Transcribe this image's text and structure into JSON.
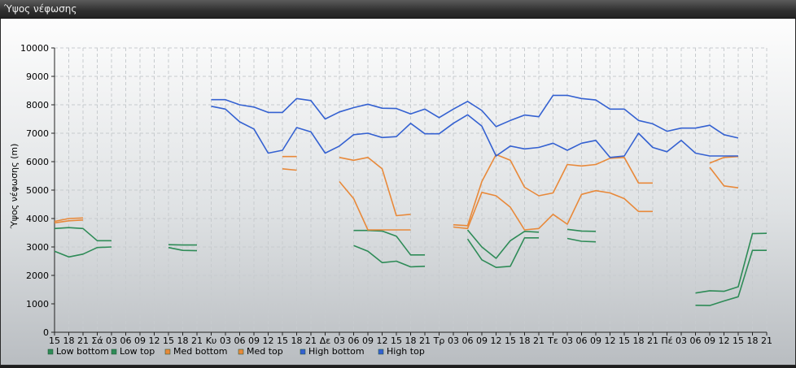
{
  "window": {
    "title": "Ύψος νέφωσης"
  },
  "chart_data": {
    "type": "line",
    "title": "",
    "xlabel": "",
    "ylabel": "Ύψος νέφωσης (m)",
    "ylim": [
      0,
      10000
    ],
    "yticks": [
      0,
      1000,
      2000,
      3000,
      4000,
      5000,
      6000,
      7000,
      8000,
      9000,
      10000
    ],
    "grid": true,
    "legend_position": "bottom-left",
    "categories": [
      "15",
      "18",
      "21",
      "Σά",
      "03",
      "06",
      "09",
      "12",
      "15",
      "18",
      "21",
      "Κυ",
      "03",
      "06",
      "09",
      "12",
      "15",
      "18",
      "21",
      "Δε",
      "03",
      "06",
      "09",
      "12",
      "15",
      "18",
      "21",
      "Τρ",
      "03",
      "06",
      "09",
      "12",
      "15",
      "18",
      "21",
      "Τε",
      "03",
      "06",
      "09",
      "12",
      "15",
      "18",
      "21",
      "Πέ",
      "03",
      "06",
      "09",
      "12",
      "15",
      "18",
      "21"
    ],
    "series": [
      {
        "name": "Low bottom",
        "color": "#2e8b57",
        "values": [
          2850,
          2650,
          2750,
          2980,
          3000,
          null,
          null,
          null,
          2980,
          2880,
          2870,
          null,
          null,
          null,
          null,
          null,
          null,
          null,
          null,
          null,
          null,
          3050,
          2850,
          2450,
          2500,
          2300,
          2320,
          null,
          null,
          3280,
          2550,
          2280,
          2320,
          3320,
          3320,
          null,
          3300,
          3200,
          3180,
          null,
          null,
          null,
          null,
          null,
          null,
          950,
          940,
          1100,
          1250,
          2880,
          2880
        ]
      },
      {
        "name": "Low top",
        "color": "#2e8b57",
        "values": [
          3650,
          3680,
          3650,
          3220,
          3220,
          null,
          null,
          null,
          3080,
          3070,
          3070,
          null,
          null,
          null,
          null,
          null,
          null,
          null,
          null,
          null,
          null,
          3580,
          3580,
          3560,
          3380,
          2720,
          2720,
          null,
          null,
          3600,
          3000,
          2600,
          3220,
          3550,
          3520,
          null,
          3620,
          3560,
          3550,
          null,
          null,
          null,
          null,
          null,
          null,
          1380,
          1460,
          1440,
          1600,
          3470,
          3480
        ]
      },
      {
        "name": "Med bottom",
        "color": "#e8893a",
        "values": [
          3850,
          3920,
          3950,
          null,
          null,
          null,
          null,
          null,
          null,
          null,
          null,
          null,
          null,
          null,
          null,
          null,
          5750,
          5700,
          null,
          null,
          5300,
          4700,
          3600,
          3600,
          3600,
          3600,
          null,
          null,
          3700,
          3650,
          4920,
          4800,
          4400,
          3600,
          3650,
          4150,
          3800,
          4850,
          4980,
          4900,
          4700,
          4250,
          4250,
          null,
          null,
          null,
          5800,
          5150,
          5080,
          null,
          null
        ]
      },
      {
        "name": "Med top",
        "color": "#e8893a",
        "values": [
          3900,
          4000,
          4020,
          null,
          null,
          null,
          null,
          null,
          null,
          null,
          null,
          null,
          null,
          null,
          null,
          null,
          6180,
          6180,
          null,
          null,
          6150,
          6050,
          6150,
          5750,
          4100,
          4150,
          null,
          null,
          3780,
          3750,
          5300,
          6250,
          6050,
          5100,
          4800,
          4900,
          5900,
          5850,
          5900,
          6120,
          6150,
          5250,
          5250,
          null,
          null,
          null,
          5950,
          6150,
          6180,
          null,
          null
        ]
      },
      {
        "name": "High bottom",
        "color": "#3461d1",
        "values": [
          null,
          null,
          null,
          null,
          null,
          null,
          null,
          null,
          null,
          null,
          null,
          7950,
          7850,
          7400,
          7150,
          6300,
          6400,
          7200,
          7050,
          6300,
          6550,
          6950,
          7000,
          6850,
          6880,
          7350,
          6980,
          6980,
          7350,
          7650,
          7250,
          6200,
          6550,
          6450,
          6500,
          6650,
          6400,
          6650,
          6750,
          6150,
          6200,
          7000,
          6500,
          6350,
          6750,
          6300,
          6200,
          6200,
          6200,
          null,
          null
        ]
      },
      {
        "name": "High top",
        "color": "#3461d1",
        "values": [
          null,
          null,
          null,
          null,
          null,
          null,
          null,
          null,
          null,
          null,
          null,
          8180,
          8180,
          8000,
          7920,
          7730,
          7730,
          8220,
          8150,
          7500,
          7750,
          7900,
          8020,
          7880,
          7870,
          7680,
          7850,
          7550,
          7850,
          8120,
          7800,
          7230,
          7450,
          7640,
          7580,
          8330,
          8330,
          8220,
          8170,
          7850,
          7850,
          7450,
          7330,
          7070,
          7180,
          7180,
          7280,
          6950,
          6830,
          null,
          null
        ]
      }
    ]
  }
}
